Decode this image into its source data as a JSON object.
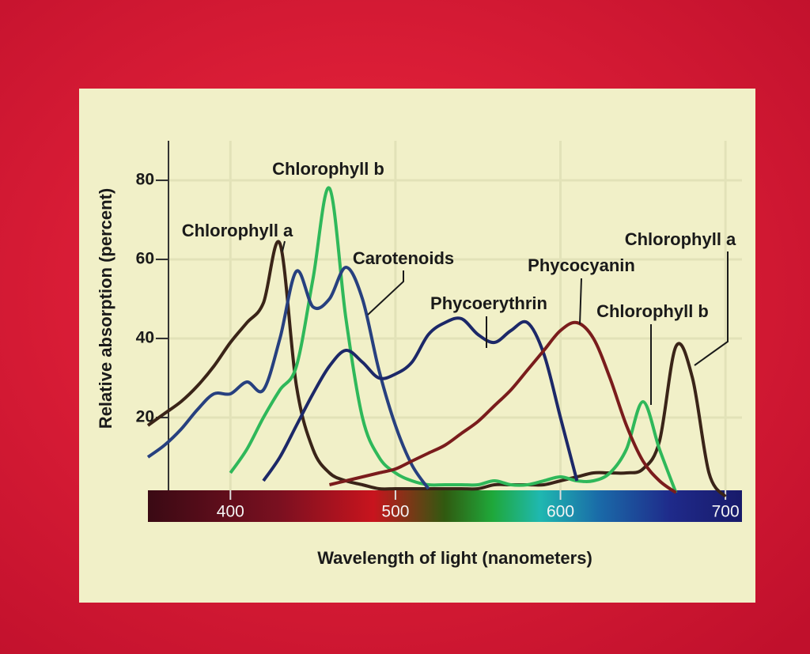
{
  "chart_data": {
    "type": "line",
    "x_label": "Wavelength of light (nanometers)",
    "y_label": "Relative absorption (percent)",
    "x": [
      350,
      360,
      370,
      380,
      390,
      400,
      410,
      420,
      430,
      440,
      450,
      460,
      470,
      480,
      490,
      500,
      510,
      520,
      530,
      540,
      550,
      560,
      570,
      580,
      590,
      600,
      610,
      620,
      630,
      640,
      650,
      660,
      670,
      680,
      690,
      700
    ],
    "series": [
      {
        "name": "Chlorophyll a",
        "color": "#3a2418",
        "values": [
          18,
          21,
          24,
          28,
          33,
          39,
          44,
          49,
          64,
          28,
          12,
          6,
          4,
          3,
          2,
          2,
          2,
          2,
          2,
          2,
          2,
          3,
          3,
          3,
          3,
          4,
          5,
          6,
          6,
          6,
          7,
          14,
          38,
          30,
          6,
          0
        ]
      },
      {
        "name": "Chlorophyll b",
        "color": "#2fb85a",
        "values": [
          null,
          null,
          null,
          null,
          null,
          6,
          12,
          20,
          27,
          33,
          55,
          78,
          45,
          20,
          10,
          6,
          4,
          3,
          3,
          3,
          3,
          4,
          3,
          3,
          4,
          5,
          4,
          4,
          6,
          12,
          24,
          12,
          1,
          null,
          null,
          null
        ]
      },
      {
        "name": "Carotenoids",
        "color": "#27407f",
        "values": [
          10,
          13,
          17,
          22,
          26,
          26,
          29,
          27,
          40,
          57,
          48,
          50,
          58,
          50,
          32,
          18,
          8,
          2,
          null,
          null,
          null,
          null,
          null,
          null,
          null,
          null,
          null,
          null,
          null,
          null,
          null,
          null,
          null,
          null,
          null,
          null
        ]
      },
      {
        "name": "Phycoerythrin",
        "color": "#1c2868",
        "values": [
          null,
          null,
          null,
          null,
          null,
          null,
          null,
          4,
          10,
          18,
          26,
          33,
          37,
          34,
          30,
          31,
          34,
          41,
          44,
          45,
          41,
          39,
          42,
          44,
          36,
          20,
          4,
          null,
          null,
          null,
          null,
          null,
          null,
          null,
          null,
          null
        ]
      },
      {
        "name": "Phycocyanin",
        "color": "#7a1c1c",
        "values": [
          null,
          null,
          null,
          null,
          null,
          null,
          null,
          null,
          null,
          null,
          null,
          3,
          4,
          5,
          6,
          7,
          9,
          11,
          13,
          16,
          19,
          23,
          27,
          32,
          37,
          42,
          44,
          40,
          30,
          18,
          9,
          4,
          1,
          null,
          null,
          null
        ]
      }
    ],
    "xlim": [
      350,
      710
    ],
    "xticks": [
      400,
      500,
      600,
      700
    ],
    "ylim": [
      0,
      90
    ],
    "yticks": [
      20,
      40,
      60,
      80
    ],
    "grid": true
  }
}
